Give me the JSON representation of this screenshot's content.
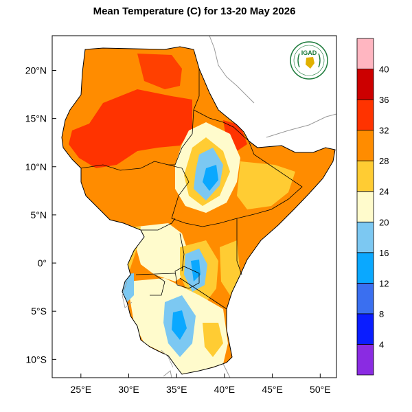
{
  "title": "Mean Temperature (C) for 13-20 May 2026",
  "logo": {
    "text": "IGAD",
    "icon": "igad-logo-icon"
  },
  "axes": {
    "x_ticks": [
      {
        "value": 25,
        "label": "25°E"
      },
      {
        "value": 30,
        "label": "30°E"
      },
      {
        "value": 35,
        "label": "35°E"
      },
      {
        "value": 40,
        "label": "40°E"
      },
      {
        "value": 45,
        "label": "45°E"
      },
      {
        "value": 50,
        "label": "50°E"
      }
    ],
    "y_ticks": [
      {
        "value": 20,
        "label": "20°N"
      },
      {
        "value": 15,
        "label": "15°N"
      },
      {
        "value": 10,
        "label": "10°N"
      },
      {
        "value": 5,
        "label": "5°N"
      },
      {
        "value": 0,
        "label": "0°"
      },
      {
        "value": -5,
        "label": "5°S"
      },
      {
        "value": -10,
        "label": "10°S"
      }
    ],
    "lon_range": [
      22,
      51.7
    ],
    "lat_range": [
      -11.9,
      23.6
    ]
  },
  "colorbar": {
    "bins": [
      {
        "color": "#8a2be2"
      },
      {
        "color": "#0a1dff"
      },
      {
        "color": "#3a6ff0"
      },
      {
        "color": "#0aa8ff"
      },
      {
        "color": "#7cc8f2"
      },
      {
        "color": "#fffbcc"
      },
      {
        "color": "#ffcc33"
      },
      {
        "color": "#ff8c00"
      },
      {
        "color": "#ff3300"
      },
      {
        "color": "#cc0000"
      },
      {
        "color": "#ffb6c1"
      }
    ],
    "labels": [
      "4",
      "8",
      "12",
      "16",
      "20",
      "24",
      "28",
      "32",
      "36",
      "40"
    ]
  }
}
